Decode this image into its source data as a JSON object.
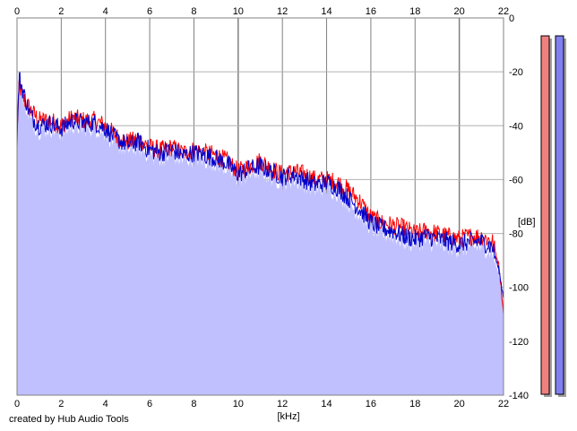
{
  "credit": "created by Hub Audio Tools",
  "chart_data": {
    "type": "area",
    "xlabel": "[kHz]",
    "ylabel": "[dB]",
    "xlim": [
      0,
      22
    ],
    "ylim": [
      -140,
      0
    ],
    "x_ticks": [
      "0",
      "2",
      "4",
      "6",
      "8",
      "10",
      "12",
      "14",
      "16",
      "18",
      "20",
      "22"
    ],
    "y_ticks": [
      "0",
      "-20",
      "-40",
      "-60",
      "-80",
      "-100",
      "-120",
      "-140"
    ],
    "grid": true,
    "legend": "none",
    "fill_color": "#c0c0ff",
    "series": [
      {
        "color": "#ff0000",
        "x": [
          0,
          0.1,
          0.3,
          0.6,
          1,
          1.5,
          2,
          2.5,
          3,
          3.5,
          4,
          4.5,
          5,
          5.5,
          6,
          6.5,
          7,
          7.5,
          8,
          8.5,
          9,
          9.5,
          10,
          10.5,
          11,
          11.5,
          12,
          12.5,
          13,
          13.5,
          14,
          14.5,
          15,
          15.5,
          16,
          16.5,
          17,
          17.5,
          18,
          18.5,
          19,
          19.5,
          20,
          20.5,
          21,
          21.5,
          21.8,
          22
        ],
        "values": [
          -42,
          -25,
          -30,
          -34,
          -38,
          -38,
          -40,
          -37,
          -38,
          -38,
          -40,
          -44,
          -46,
          -45,
          -48,
          -49,
          -48,
          -50,
          -49,
          -50,
          -51,
          -53,
          -57,
          -55,
          -53,
          -56,
          -58,
          -57,
          -58,
          -60,
          -60,
          -61,
          -64,
          -68,
          -74,
          -76,
          -77,
          -78,
          -80,
          -79,
          -80,
          -81,
          -82,
          -81,
          -81,
          -83,
          -92,
          -110
        ]
      },
      {
        "color": "#0000cc",
        "x": [
          0,
          0.1,
          0.3,
          0.6,
          1,
          1.5,
          2,
          2.5,
          3,
          3.5,
          4,
          4.5,
          5,
          5.5,
          6,
          6.5,
          7,
          7.5,
          8,
          8.5,
          9,
          9.5,
          10,
          10.5,
          11,
          11.5,
          12,
          12.5,
          13,
          13.5,
          14,
          14.5,
          15,
          15.5,
          16,
          16.5,
          17,
          17.5,
          18,
          18.5,
          19,
          19.5,
          20,
          20.5,
          21,
          21.5,
          21.8,
          22
        ],
        "values": [
          -45,
          -22,
          -28,
          -36,
          -40,
          -39,
          -41,
          -38,
          -39,
          -39,
          -41,
          -45,
          -47,
          -46,
          -49,
          -50,
          -49,
          -51,
          -50,
          -51,
          -52,
          -54,
          -58,
          -56,
          -55,
          -57,
          -59,
          -58,
          -60,
          -62,
          -61,
          -63,
          -67,
          -71,
          -76,
          -78,
          -79,
          -81,
          -82,
          -81,
          -82,
          -83,
          -84,
          -83,
          -83,
          -85,
          -94,
          -104
        ]
      }
    ],
    "level_meters": [
      {
        "color": "#f08080",
        "level_fraction": 1.0
      },
      {
        "color": "#8080f0",
        "level_fraction": 1.0
      }
    ]
  }
}
